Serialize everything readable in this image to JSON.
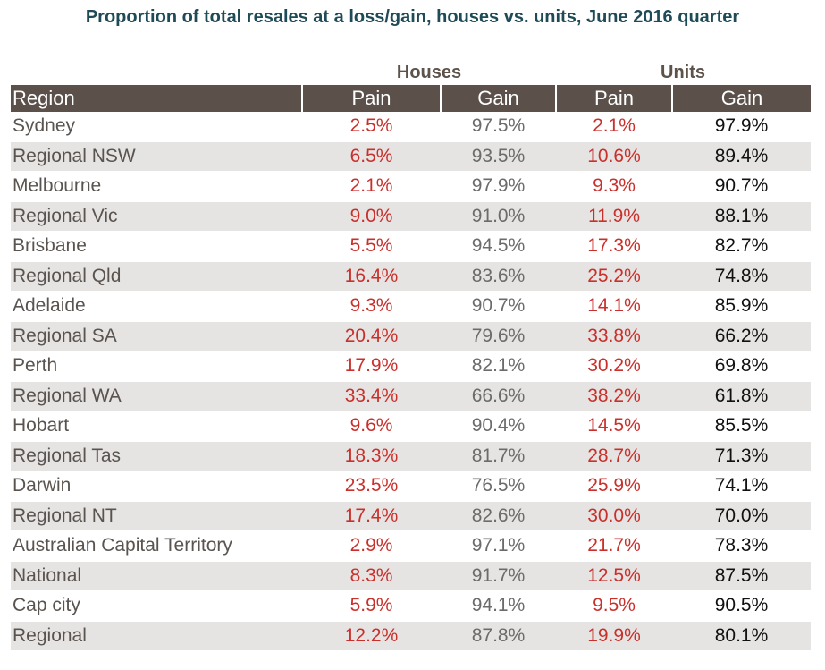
{
  "title": "Proportion of total resales at a loss/gain, houses vs. units, June 2016 quarter",
  "groups": {
    "houses": "Houses",
    "units": "Units"
  },
  "headers": [
    "Region",
    "Pain",
    "Gain",
    "Pain",
    "Gain"
  ],
  "chart_data": {
    "type": "table",
    "title": "Proportion of total resales at a loss/gain, houses vs. units, June 2016 quarter",
    "column_groups": [
      "Houses",
      "Units"
    ],
    "columns": [
      "Region",
      "Pain",
      "Gain",
      "Pain",
      "Gain"
    ],
    "rows": [
      [
        "Sydney",
        "2.5%",
        "97.5%",
        "2.1%",
        "97.9%"
      ],
      [
        "Regional NSW",
        "6.5%",
        "93.5%",
        "10.6%",
        "89.4%"
      ],
      [
        "Melbourne",
        "2.1%",
        "97.9%",
        "9.3%",
        "90.7%"
      ],
      [
        "Regional Vic",
        "9.0%",
        "91.0%",
        "11.9%",
        "88.1%"
      ],
      [
        "Brisbane",
        "5.5%",
        "94.5%",
        "17.3%",
        "82.7%"
      ],
      [
        "Regional Qld",
        "16.4%",
        "83.6%",
        "25.2%",
        "74.8%"
      ],
      [
        "Adelaide",
        "9.3%",
        "90.7%",
        "14.1%",
        "85.9%"
      ],
      [
        "Regional SA",
        "20.4%",
        "79.6%",
        "33.8%",
        "66.2%"
      ],
      [
        "Perth",
        "17.9%",
        "82.1%",
        "30.2%",
        "69.8%"
      ],
      [
        "Regional WA",
        "33.4%",
        "66.6%",
        "38.2%",
        "61.8%"
      ],
      [
        "Hobart",
        "9.6%",
        "90.4%",
        "14.5%",
        "85.5%"
      ],
      [
        "Regional Tas",
        "18.3%",
        "81.7%",
        "28.7%",
        "71.3%"
      ],
      [
        "Darwin",
        "23.5%",
        "76.5%",
        "25.9%",
        "74.1%"
      ],
      [
        "Regional NT",
        "17.4%",
        "82.6%",
        "30.0%",
        "70.0%"
      ],
      [
        "Australian Capital Territory",
        "2.9%",
        "97.1%",
        "21.7%",
        "78.3%"
      ],
      [
        "National",
        "8.3%",
        "91.7%",
        "12.5%",
        "87.5%"
      ],
      [
        "Cap city",
        "5.9%",
        "94.1%",
        "9.5%",
        "90.5%"
      ],
      [
        "Regional",
        "12.2%",
        "87.8%",
        "19.9%",
        "80.1%"
      ]
    ]
  },
  "colors": {
    "title": "#1f4a57",
    "header_bg": "#5c514a",
    "group_label": "#5e534b",
    "pain": "#c9302c",
    "stripe": "#e6e4e2"
  }
}
